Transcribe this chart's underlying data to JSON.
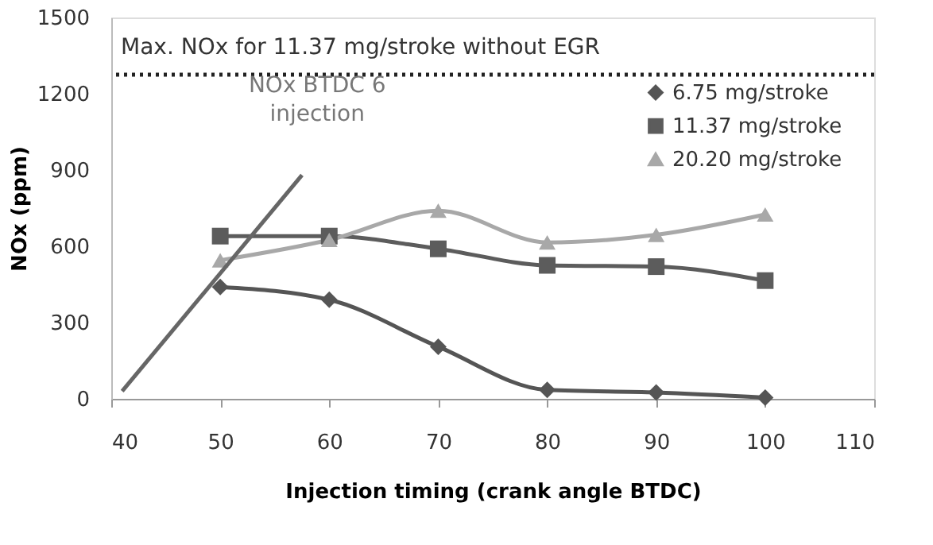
{
  "chart_data": {
    "type": "line",
    "xlabel": "Injection timing (crank angle BTDC)",
    "ylabel": "NOx (ppm)",
    "x": [
      50,
      60,
      70,
      80,
      90,
      100
    ],
    "series": [
      {
        "name": "6.75 mg/stroke",
        "color": "#555555",
        "marker": "diamond",
        "values": [
          440,
          390,
          205,
          35,
          25,
          5
        ]
      },
      {
        "name": "11.37 mg/stroke",
        "color": "#5c5c5c",
        "marker": "square",
        "values": [
          640,
          640,
          590,
          525,
          520,
          465
        ]
      },
      {
        "name": "20.20 mg/stroke",
        "color": "#a8a8a8",
        "marker": "triangle",
        "values": [
          545,
          625,
          740,
          615,
          645,
          725
        ]
      },
      {
        "color": "#666666",
        "marker": "none",
        "x": [
          57.5,
          41
        ],
        "values": [
          880,
          30
        ]
      }
    ],
    "xlim": [
      40,
      110
    ],
    "xticks": [
      40,
      50,
      60,
      70,
      80,
      90,
      100,
      110
    ],
    "ylim": [
      0,
      1500
    ],
    "yticks": [
      0,
      300,
      600,
      900,
      {
        "value": 1200,
        "label": "1200"
      },
      {
        "value": 1500,
        "label": "1500"
      }
    ],
    "ref_lines": [
      {
        "axis": "y",
        "value": 1275,
        "label": "Max. NOx for 11.37 mg/stroke without EGR",
        "color": "#222222",
        "line_style": "dotted"
      }
    ],
    "annotations": [
      "NOx BTDC 6 injection"
    ],
    "legend": "top right",
    "grid": false
  }
}
